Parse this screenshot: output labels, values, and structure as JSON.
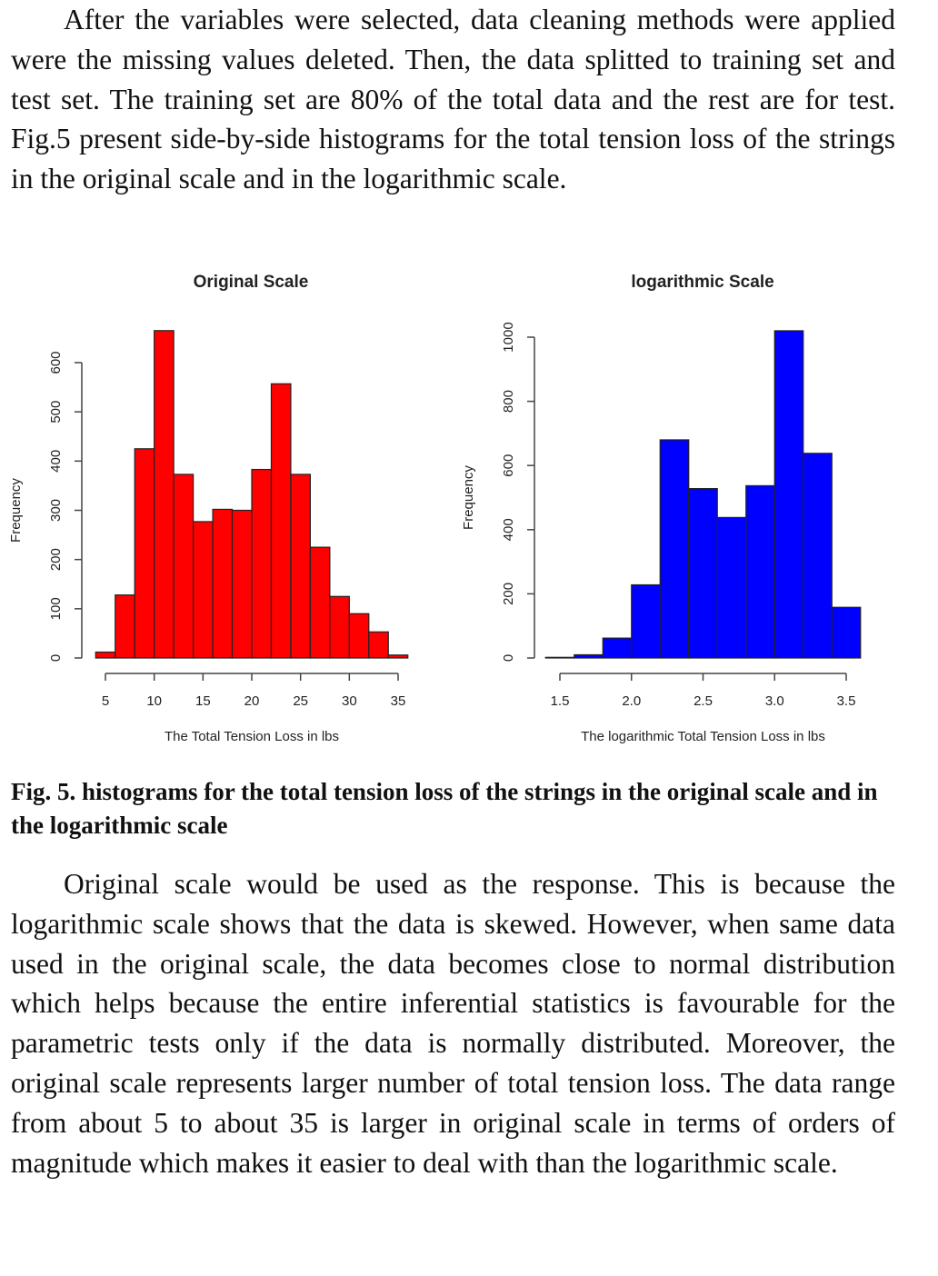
{
  "paragraphs": [
    "After the variables were selected, data cleaning methods were applied were the missing values deleted. Then, the data splitted to training set and test set. The training set are 80% of the total data and the rest are for test. Fig.5 present side-by-side histograms for the total tension loss of the strings in the original scale and in the logarithmic scale.",
    "Original scale would be used as the response. This is because the logarithmic scale shows that the data is skewed. However, when same data used in the original scale, the data becomes close to normal distribution which helps because the entire inferential statistics is favourable for the parametric tests only if the data is normally distributed. Moreover, the original scale represents larger number of total tension loss. The data range from about 5 to about 35 is larger in original scale in terms of orders of magnitude which makes it easier to deal with than the logarithmic scale."
  ],
  "caption": "Fig. 5. histograms for the total tension loss of the strings in the original scale and in the logarithmic scale",
  "chart_data": [
    {
      "type": "bar",
      "title": "Original Scale",
      "xlabel": "The Total Tension Loss in lbs",
      "ylabel": "Frequency",
      "color": "#ff0000",
      "bin_edges": [
        4,
        6,
        8,
        10,
        12,
        14,
        16,
        18,
        20,
        22,
        24,
        26,
        28,
        30,
        32,
        34,
        36
      ],
      "values": [
        12,
        128,
        425,
        665,
        373,
        277,
        302,
        300,
        383,
        557,
        373,
        225,
        125,
        90,
        53,
        6
      ],
      "xticks": [
        5,
        10,
        15,
        20,
        25,
        30,
        35
      ],
      "xtick_labels": [
        "5",
        "10",
        "15",
        "20",
        "25",
        "30",
        "35"
      ],
      "yticks": [
        0,
        100,
        200,
        300,
        400,
        500,
        600
      ],
      "ytick_labels": [
        "0",
        "100",
        "200",
        "300",
        "400",
        "500",
        "600"
      ],
      "grid": false
    },
    {
      "type": "bar",
      "title": "logarithmic Scale",
      "xlabel": "The logarithmic Total Tension Loss in lbs",
      "ylabel": "Frequency",
      "color": "#0000ff",
      "bin_edges": [
        1.4,
        1.6,
        1.8,
        2.0,
        2.2,
        2.4,
        2.6,
        2.8,
        3.0,
        3.2,
        3.4,
        3.6
      ],
      "values": [
        2,
        10,
        62,
        228,
        680,
        528,
        438,
        537,
        1020,
        638,
        158
      ],
      "xticks": [
        1.5,
        2.0,
        2.5,
        3.0,
        3.5
      ],
      "xtick_labels": [
        "1.5",
        "2.0",
        "2.5",
        "3.0",
        "3.5"
      ],
      "yticks": [
        0,
        200,
        400,
        600,
        800,
        1000
      ],
      "ytick_labels": [
        "0",
        "200",
        "400",
        "600",
        "800",
        "1000"
      ],
      "grid": false
    }
  ]
}
